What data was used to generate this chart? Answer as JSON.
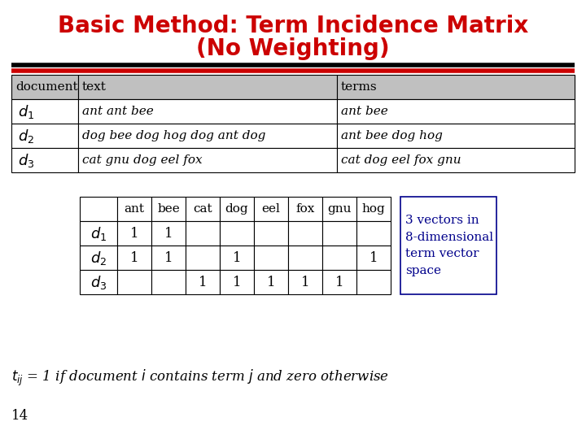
{
  "title_line1": "Basic Method: Term Incidence Matrix",
  "title_line2": "(No Weighting)",
  "title_color": "#cc0000",
  "title_fontsize": 20,
  "bg_color": "#ffffff",
  "top_table_headers": [
    "document",
    "text",
    "terms"
  ],
  "top_table_rows": [
    [
      "d_1",
      "ant ant bee",
      "ant bee"
    ],
    [
      "d_2",
      "dog bee dog hog dog ant dog",
      "ant bee dog hog"
    ],
    [
      "d_3",
      "cat gnu dog eel fox",
      "cat dog eel fox gnu"
    ]
  ],
  "top_table_header_bg": "#c0c0c0",
  "matrix_terms": [
    "ant",
    "bee",
    "cat",
    "dog",
    "eel",
    "fox",
    "gnu",
    "hog"
  ],
  "matrix_docs": [
    "d_1",
    "d_2",
    "d_3"
  ],
  "matrix_data": [
    [
      1,
      1,
      0,
      0,
      0,
      0,
      0,
      0
    ],
    [
      1,
      1,
      0,
      1,
      0,
      0,
      0,
      1
    ],
    [
      0,
      0,
      1,
      1,
      1,
      1,
      1,
      0
    ]
  ],
  "note_text": "3 vectors in\n8-dimensional\nterm vector\nspace",
  "note_color": "#00008b",
  "note_fontsize": 11,
  "page_num": "14",
  "divider_color_top": "#000000",
  "divider_color_bottom": "#cc0000"
}
